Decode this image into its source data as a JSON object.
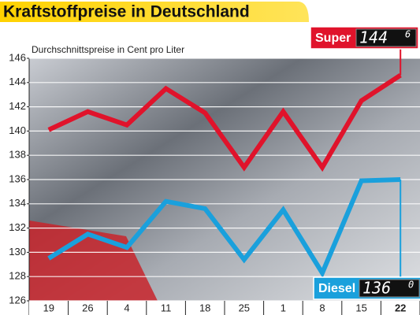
{
  "chart_data": {
    "type": "line",
    "title": "Kraftstoffpreise in Deutschland",
    "subtitle": "Durchschnittspreise in Cent pro Liter",
    "categories": [
      "19",
      "26",
      "4",
      "11",
      "18",
      "25",
      "1",
      "8",
      "15",
      "22"
    ],
    "series": [
      {
        "name": "Super",
        "color": "#e0132b",
        "values": [
          140.1,
          141.6,
          140.5,
          143.5,
          141.5,
          137.0,
          141.6,
          137.0,
          142.5,
          144.6
        ],
        "badge": [
          "144",
          "6"
        ]
      },
      {
        "name": "Diesel",
        "color": "#1aa0dc",
        "values": [
          129.5,
          131.5,
          130.4,
          134.2,
          133.6,
          129.4,
          133.5,
          128.3,
          135.9,
          136.0
        ],
        "badge": [
          "136",
          "0"
        ]
      }
    ],
    "ylim": [
      126,
      146
    ],
    "yticks": [
      126,
      128,
      130,
      132,
      134,
      136,
      138,
      140,
      142,
      144,
      146
    ],
    "grid": true
  }
}
